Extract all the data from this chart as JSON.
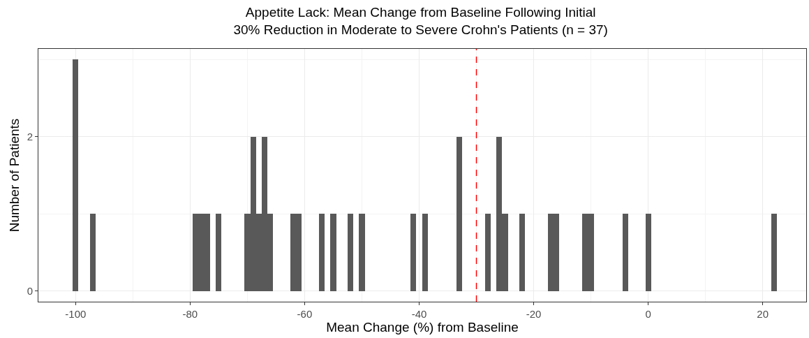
{
  "chart_data": {
    "type": "histogram",
    "title": "Appetite Lack: Mean Change from Baseline Following Initial\n30% Reduction in Moderate to Severe Crohn's Patients (n = 37)",
    "xlabel": "Mean Change (%) from Baseline",
    "ylabel": "Number of Patients",
    "bins": [
      -100.5,
      -99.5,
      -97.5,
      -96.5,
      -79.5,
      -78.5,
      -77.5,
      -76.5,
      -75.5,
      -74.5,
      -70.5,
      -69.5,
      -68.5,
      -67.5,
      -66.5,
      -65.5,
      -62.5,
      -61.5,
      -60.5,
      -57.5,
      -56.5,
      -55.5,
      -54.5,
      -52.5,
      -51.5,
      -50.5,
      -49.5,
      -41.5,
      -40.5,
      -39.5,
      -38.5,
      -33.5,
      -32.5,
      -28.5,
      -27.5,
      -26.5,
      -25.5,
      -24.5,
      -22.5,
      -21.5,
      -17.5,
      -16.5,
      -15.5,
      -11.5,
      -10.5,
      -9.5,
      -4.5,
      -3.5,
      -0.5,
      0.5,
      21.5,
      22.5
    ],
    "values": [
      3,
      0,
      1,
      0,
      1,
      1,
      1,
      0,
      1,
      0,
      1,
      2,
      1,
      2,
      1,
      0,
      1,
      1,
      0,
      1,
      0,
      1,
      0,
      1,
      0,
      1,
      0,
      1,
      0,
      1,
      0,
      2,
      0,
      1,
      0,
      2,
      1,
      0,
      1,
      0,
      1,
      1,
      0,
      1,
      1,
      0,
      1,
      0,
      1,
      0,
      1
    ],
    "color": "#595959",
    "xlim": [
      -106.5,
      27.6
    ],
    "xticks": [
      -100,
      -80,
      -60,
      -40,
      -20,
      0,
      20
    ],
    "ylim": [
      -0.14,
      3.14
    ],
    "yticks": [
      0,
      2
    ],
    "grid": true,
    "ref_lines": [
      {
        "axis": "x",
        "value": -30,
        "color": "#ff0000",
        "line_style": "dashed"
      }
    ]
  }
}
